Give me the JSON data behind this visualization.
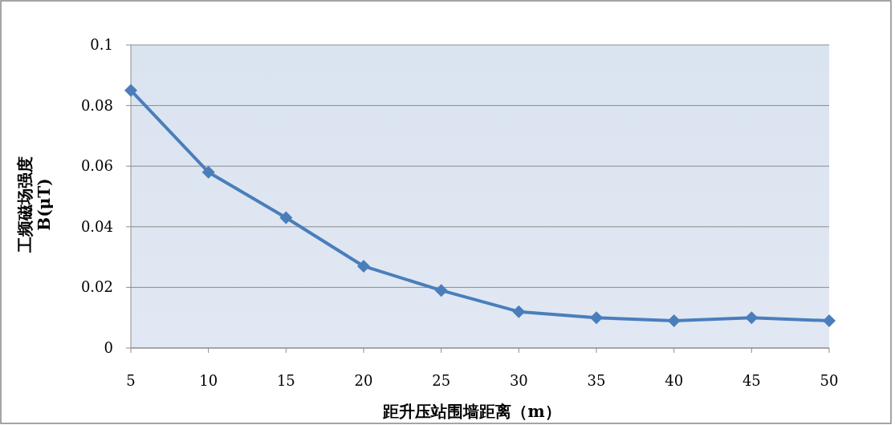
{
  "chart_data": {
    "type": "line",
    "xlabel": "距升压站围墙距离（m）",
    "ylabel": "工频磁场强度 B(μT)",
    "x": [
      5,
      10,
      15,
      20,
      25,
      30,
      35,
      40,
      45,
      50
    ],
    "series": [
      {
        "color": "#4a7ebb",
        "values": [
          0.085,
          0.058,
          0.043,
          0.027,
          0.019,
          0.012,
          0.01,
          0.009,
          0.01,
          0.009
        ]
      }
    ],
    "xlim": [
      5,
      50
    ],
    "xticks": [
      5,
      10,
      15,
      20,
      25,
      30,
      35,
      40,
      45,
      50
    ],
    "ylim": [
      0,
      0.1
    ],
    "yticks": [
      0,
      0.02,
      0.04,
      0.06,
      0.08,
      0.1
    ],
    "grid": "y",
    "marker": "diamond",
    "line_style": "solid"
  }
}
